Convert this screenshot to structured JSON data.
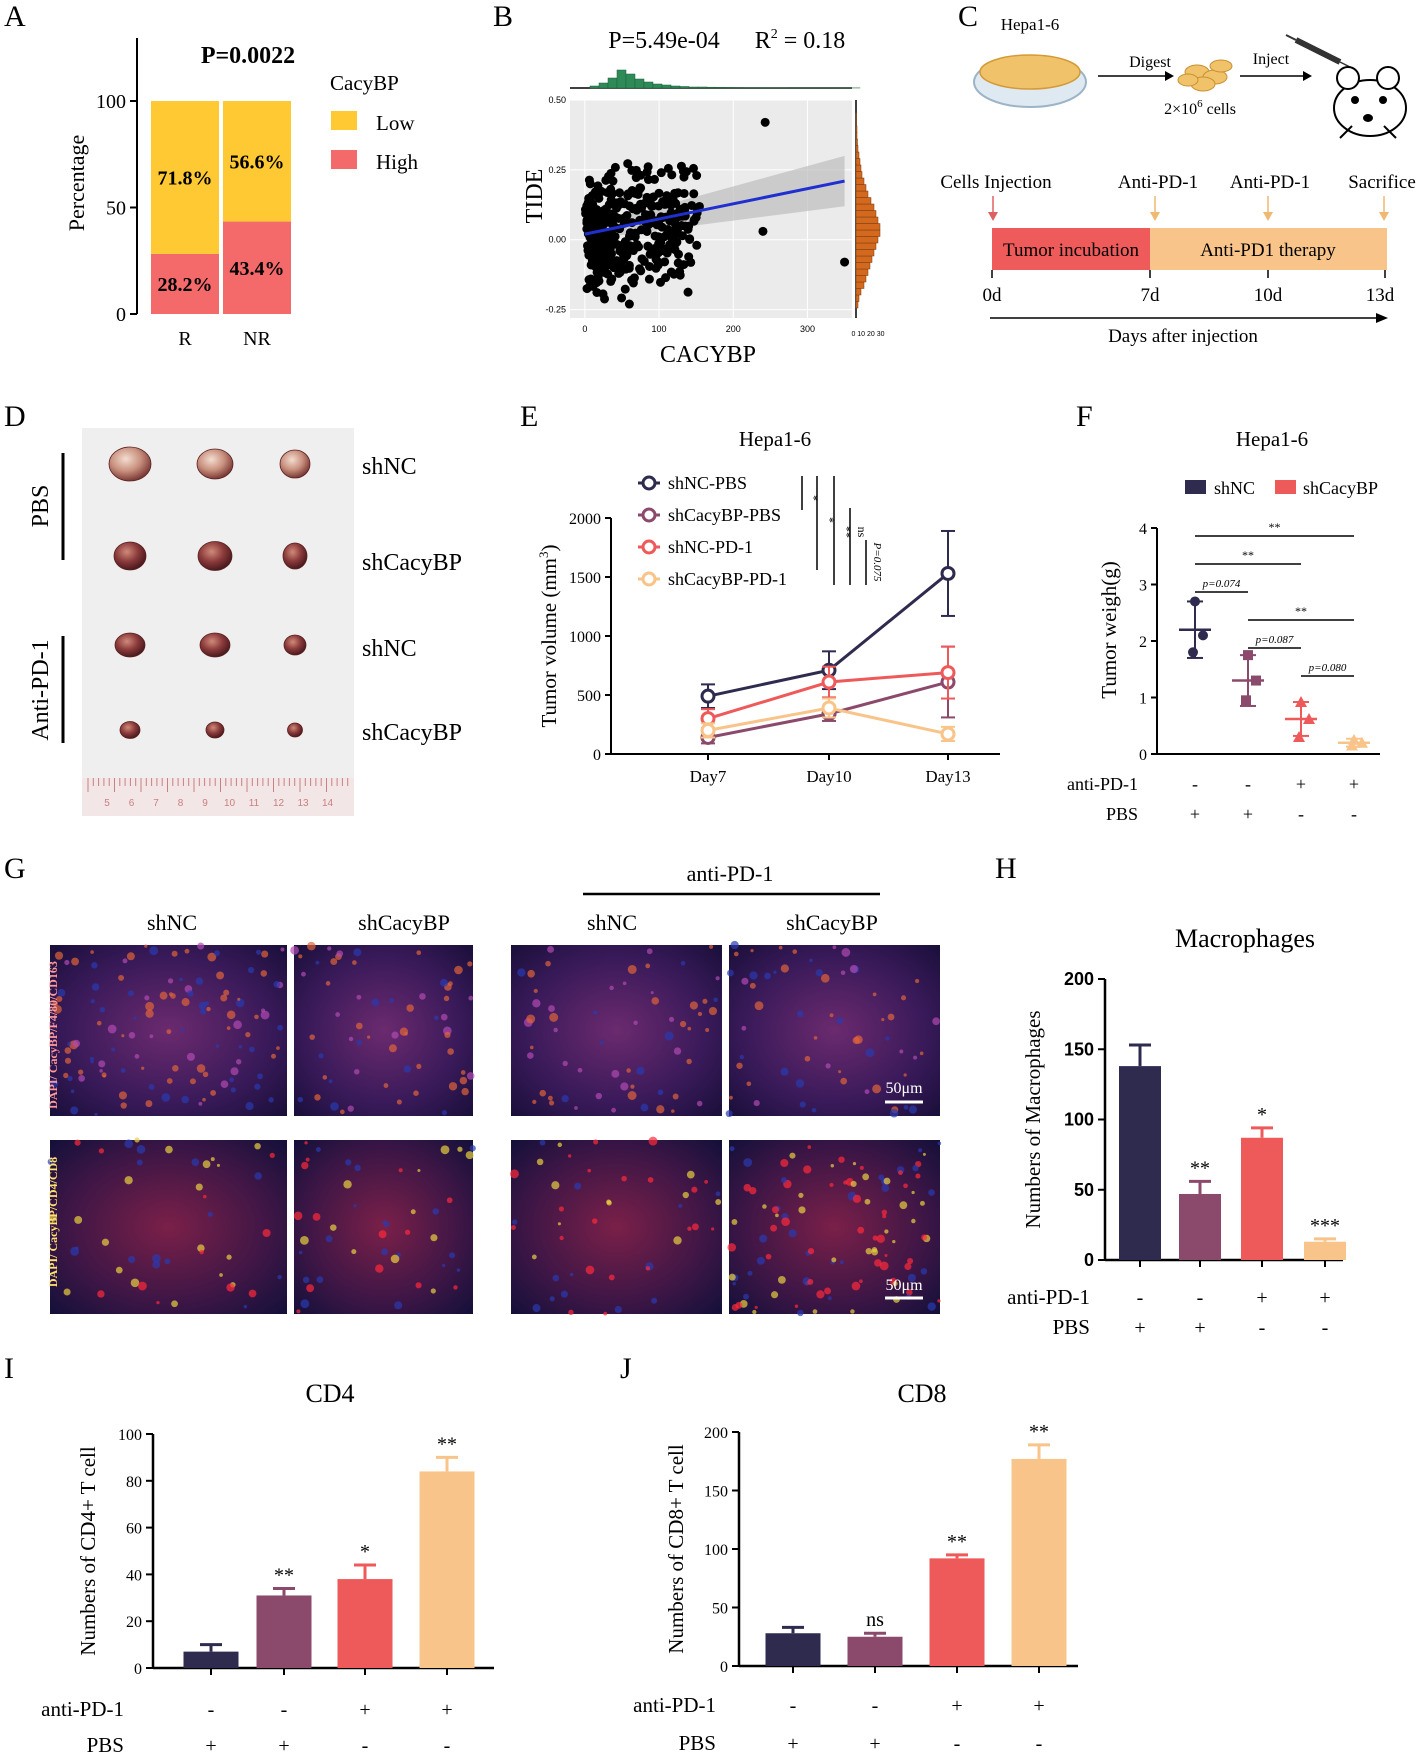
{
  "panels": {
    "A": "A",
    "B": "B",
    "C": "C",
    "D": "D",
    "E": "E",
    "F": "F",
    "G": "G",
    "H": "H",
    "I": "I",
    "J": "J"
  },
  "colors": {
    "low": "#FFC933",
    "high": "#F46A6A",
    "shnc_pbs": "#2E2B4F",
    "shcacybp_pbs": "#8B4A6B",
    "shnc_pd1": "#EE5A5A",
    "shcacybp_pd1": "#F8C48A",
    "scatter_hist_top": "#2E8B57",
    "scatter_hist_right": "#D2691E",
    "fit_line": "#1F2FD0"
  },
  "chart_data": [
    {
      "panel": "A",
      "type": "bar",
      "title": "P=0.0022",
      "ylabel": "Percentage",
      "xlabel": "",
      "categories": [
        "R",
        "NR"
      ],
      "ylim": [
        0,
        100
      ],
      "yticks": [
        "0",
        "50",
        "100"
      ],
      "legend_title": "CacyBP",
      "series": [
        {
          "name": "Low",
          "values": [
            71.8,
            56.6
          ],
          "labels": [
            "71.8%",
            "56.6%"
          ]
        },
        {
          "name": "High",
          "values": [
            28.2,
            43.4
          ],
          "labels": [
            "28.2%",
            "43.4%"
          ]
        }
      ]
    },
    {
      "panel": "B",
      "type": "scatter",
      "title": "P=5.49e-04",
      "title2": "R",
      "title2_sup": "2",
      "title2_value": " = 0.18",
      "xlabel": "CACYBP",
      "ylabel": "TIDE",
      "xlim": [
        -20,
        360
      ],
      "ylim": [
        -0.28,
        0.5
      ],
      "xticks": [
        "0",
        "100",
        "200",
        "300"
      ],
      "yticks": [
        "-0.25",
        "0.00",
        "0.25",
        "0.50"
      ],
      "right_hist_ticks": "0 10 20 30",
      "fit": {
        "x": [
          0,
          350
        ],
        "y": [
          0.02,
          0.21
        ]
      },
      "outliers": {
        "x": [
          243,
          350,
          240,
          150,
          60
        ],
        "y": [
          0.42,
          -0.08,
          0.03,
          0.08,
          -0.23
        ]
      }
    },
    {
      "panel": "E",
      "type": "line",
      "title": "Hepa1-6",
      "ylabel": "Tumor volume (mm",
      "ylabel_sup": "3",
      "ylabel_end": ")",
      "xlabel": "",
      "categories": [
        "Day7",
        "Day10",
        "Day13"
      ],
      "ylim": [
        0,
        2000
      ],
      "yticks": [
        "0",
        "500",
        "1000",
        "1500",
        "2000"
      ],
      "series": [
        {
          "name": "shNC-PBS",
          "values": [
            490,
            710,
            1530
          ],
          "err": [
            100,
            160,
            360
          ]
        },
        {
          "name": "shCacyBP-PBS",
          "values": [
            140,
            340,
            610
          ],
          "err": [
            50,
            60,
            300
          ]
        },
        {
          "name": "shNC-PD-1",
          "values": [
            300,
            610,
            690
          ],
          "err": [
            80,
            130,
            220
          ]
        },
        {
          "name": "shCacyBP-PD-1",
          "values": [
            200,
            390,
            170
          ],
          "err": [
            60,
            80,
            60
          ]
        }
      ],
      "sig": [
        "*",
        "*",
        "**",
        "ns",
        "P=0.075"
      ]
    },
    {
      "panel": "F",
      "type": "scatter",
      "title": "Hepa1-6",
      "ylabel": "Tumor weigh(g)",
      "ylim": [
        0,
        4
      ],
      "yticks": [
        "0",
        "1",
        "2",
        "3",
        "4"
      ],
      "legend": [
        "shNC",
        "shCacyBP"
      ],
      "groups": [
        {
          "mean": 2.2,
          "sd": 0.5,
          "points": [
            2.7,
            2.1,
            1.8
          ]
        },
        {
          "mean": 1.3,
          "sd": 0.45,
          "points": [
            1.75,
            1.3,
            0.95
          ]
        },
        {
          "mean": 0.62,
          "sd": 0.3,
          "points": [
            0.92,
            0.62,
            0.3
          ]
        },
        {
          "mean": 0.2,
          "sd": 0.07,
          "points": [
            0.25,
            0.2,
            0.15
          ]
        }
      ],
      "sig": [
        "**",
        "**",
        "p=0.074",
        "**",
        "p=0.087",
        "p=0.080"
      ],
      "row1_label": "anti-PD-1",
      "row1": [
        "-",
        "-",
        "+",
        "+"
      ],
      "row2_label": "PBS",
      "row2": [
        "+",
        "+",
        "-",
        "-"
      ]
    },
    {
      "panel": "H",
      "type": "bar",
      "title": "Macrophages",
      "ylabel": "Numbers of Macrophages",
      "ylim": [
        0,
        200
      ],
      "yticks": [
        "0",
        "50",
        "100",
        "150",
        "200"
      ],
      "values": [
        138,
        47,
        87,
        13
      ],
      "err": [
        15,
        9,
        7,
        2
      ],
      "sig": [
        "",
        "**",
        "*",
        "***"
      ],
      "row1_label": "anti-PD-1",
      "row1": [
        "-",
        "-",
        "+",
        "+"
      ],
      "row2_label": "PBS",
      "row2": [
        "+",
        "+",
        "-",
        "-"
      ]
    },
    {
      "panel": "I",
      "type": "bar",
      "title": "CD4",
      "ylabel": "Numbers of CD4+ T cell",
      "ylim": [
        0,
        100
      ],
      "yticks": [
        "0",
        "20",
        "40",
        "60",
        "80",
        "100"
      ],
      "values": [
        7,
        31,
        38,
        84
      ],
      "err": [
        3,
        3,
        6,
        6
      ],
      "sig": [
        "",
        "**",
        "*",
        "**"
      ],
      "row1_label": "anti-PD-1",
      "row1": [
        "-",
        "-",
        "+",
        "+"
      ],
      "row2_label": "PBS",
      "row2": [
        "+",
        "+",
        "-",
        "-"
      ]
    },
    {
      "panel": "J",
      "type": "bar",
      "title": "CD8",
      "ylabel": "Numbers of CD8+ T cell",
      "ylim": [
        0,
        200
      ],
      "yticks": [
        "0",
        "50",
        "100",
        "150",
        "200"
      ],
      "values": [
        28,
        25,
        92,
        177
      ],
      "err": [
        5,
        3,
        3,
        12
      ],
      "sig": [
        "",
        "ns",
        "**",
        "**"
      ],
      "row1_label": "anti-PD-1",
      "row1": [
        "-",
        "-",
        "+",
        "+"
      ],
      "row2_label": "PBS",
      "row2": [
        "+",
        "+",
        "-",
        "-"
      ]
    }
  ],
  "schematic": {
    "cell_line": "Hepa1-6",
    "digest": "Digest",
    "inject": "Inject",
    "cells": "2×10",
    "cells_sup": "6",
    "cells_end": " cells",
    "events": [
      "Cells Injection",
      "Anti-PD-1",
      "Anti-PD-1",
      "Sacrifice"
    ],
    "phase1": "Tumor incubation",
    "phase2": "Anti-PD1 therapy",
    "days": [
      "0d",
      "7d",
      "10d",
      "13d"
    ],
    "axis": "Days after injection"
  },
  "tumor_photo": {
    "group1": "PBS",
    "group2": "Anti-PD-1",
    "rows": [
      "shNC",
      "shCacyBP",
      "shNC",
      "shCacyBP"
    ],
    "ruler": [
      "5",
      "6",
      "7",
      "8",
      "9",
      "10",
      "11",
      "12",
      "13",
      "14"
    ]
  },
  "if_images": {
    "treatment": "anti-PD-1",
    "columns": [
      "shNC",
      "shCacyBP",
      "shNC",
      "shCacyBP"
    ],
    "row1_stain": "DAPI/ CacyBP/F4/80/CD163",
    "row2_stain": "DAPI/ CacyBP/CD4/CD8",
    "scale": "50μm"
  }
}
